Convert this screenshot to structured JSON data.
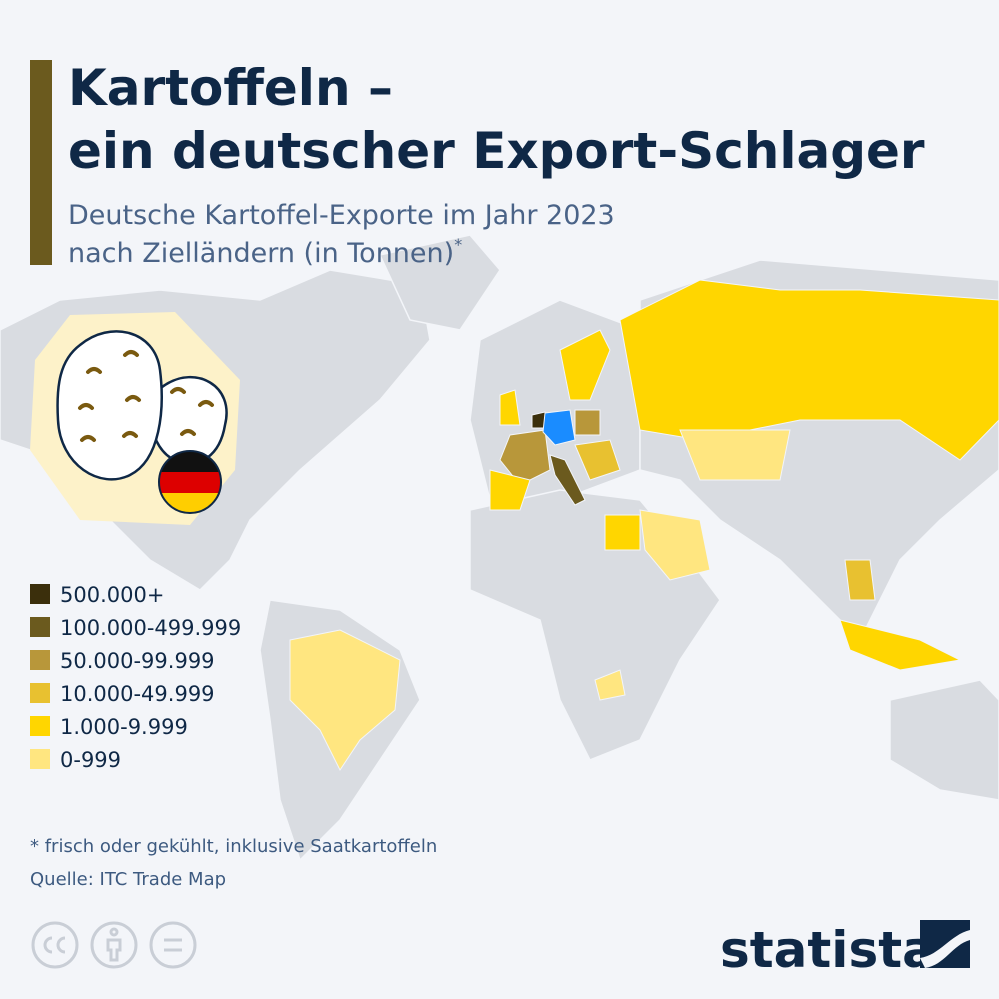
{
  "header": {
    "title": [
      "Kartoffeln –",
      "ein deutscher Export-Schlager"
    ],
    "subtitle": [
      "Deutsche Kartoffel-Exporte im Jahr 2023",
      "nach Zielländern (in Tonnen)"
    ],
    "subtitle_mark": "*"
  },
  "legend": {
    "items": [
      {
        "label": "500.000+",
        "color": "#3b2f0c"
      },
      {
        "label": "100.000-499.999",
        "color": "#6b5a1e"
      },
      {
        "label": "50.000-99.999",
        "color": "#b8973a"
      },
      {
        "label": "10.000-49.999",
        "color": "#e8c130"
      },
      {
        "label": "1.000-9.999",
        "color": "#ffd600"
      },
      {
        "label": "0-999",
        "color": "#ffe680"
      }
    ]
  },
  "footnote": "* frisch oder gekühlt, inklusive Saatkartoffeln",
  "source": "Quelle: ITC Trade Map",
  "brand": "statista"
}
